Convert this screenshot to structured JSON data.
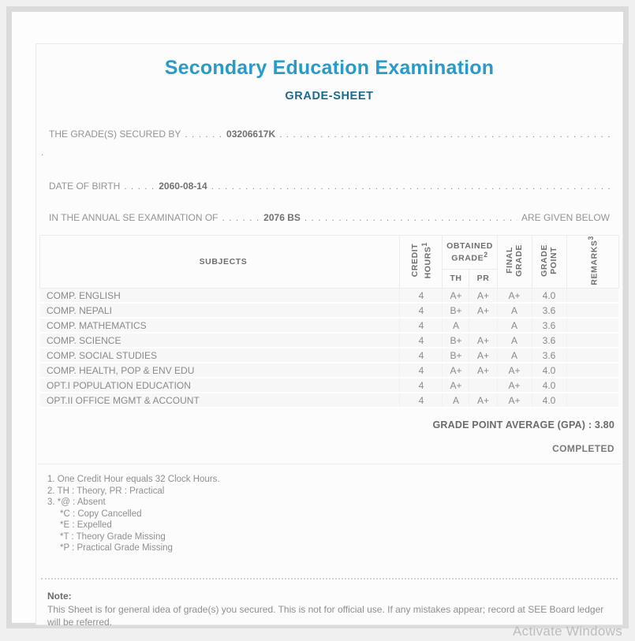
{
  "header": {
    "title": "Secondary Education Examination",
    "subtitle": "GRADE-SHEET"
  },
  "info": {
    "grades_label": "THE GRADE(S) SECURED BY",
    "grades_dots": ". . . . . .",
    "grades_value": "03206617K",
    "orphan_dot": ".",
    "dob_label": "DATE OF BIRTH",
    "dob_dots": ". . . . .",
    "dob_value": "2060-08-14",
    "exam_label": "IN THE ANNUAL SE EXAMINATION OF",
    "exam_dots": ". . . . . .",
    "exam_value": "2076 BS",
    "exam_suffix": "ARE GIVEN BELOW",
    "leader_fill": ". . . . . . . . . . . . . . . . . . . . . . . . . . . . . . . . . . . . . . . . . . . . . . . . . . . . . . . . . . . . . . . . . . . . . . . . . . . . . . . ."
  },
  "table": {
    "headers": {
      "subjects": "SUBJECTS",
      "credit_hours": "CREDIT\nHOURS",
      "credit_hours_sup": "1",
      "obtained_grade": "OBTAINED GRADE",
      "obtained_grade_sup": "2",
      "th": "TH",
      "pr": "PR",
      "final_grade": "FINAL\nGRADE",
      "grade_point": "GRADE\nPOINT",
      "remarks": "REMARKS",
      "remarks_sup": "3"
    },
    "rows": [
      {
        "subject": "COMP. ENGLISH",
        "credit": "4",
        "th": "A+",
        "pr": "A+",
        "final": "A+",
        "gp": "4.0",
        "remarks": ""
      },
      {
        "subject": "COMP. NEPALI",
        "credit": "4",
        "th": "B+",
        "pr": "A+",
        "final": "A",
        "gp": "3.6",
        "remarks": ""
      },
      {
        "subject": "COMP. MATHEMATICS",
        "credit": "4",
        "th": "A",
        "pr": "",
        "final": "A",
        "gp": "3.6",
        "remarks": ""
      },
      {
        "subject": "COMP. SCIENCE",
        "credit": "4",
        "th": "B+",
        "pr": "A+",
        "final": "A",
        "gp": "3.6",
        "remarks": ""
      },
      {
        "subject": "COMP. SOCIAL STUDIES",
        "credit": "4",
        "th": "B+",
        "pr": "A+",
        "final": "A",
        "gp": "3.6",
        "remarks": ""
      },
      {
        "subject": "COMP. HEALTH, POP & ENV EDU",
        "credit": "4",
        "th": "A+",
        "pr": "A+",
        "final": "A+",
        "gp": "4.0",
        "remarks": ""
      },
      {
        "subject": "OPT.I POPULATION EDUCATION",
        "credit": "4",
        "th": "A+",
        "pr": "",
        "final": "A+",
        "gp": "4.0",
        "remarks": ""
      },
      {
        "subject": "OPT.II OFFICE MGMT & ACCOUNT",
        "credit": "4",
        "th": "A",
        "pr": "A+",
        "final": "A+",
        "gp": "4.0",
        "remarks": ""
      }
    ]
  },
  "summary": {
    "gpa": "GRADE POINT AVERAGE (GPA) : 3.80",
    "status": "COMPLETED"
  },
  "footnotes": {
    "lines": [
      "1. One Credit Hour equals 32 Clock Hours.",
      "2. TH : Theory, PR : Practical",
      "3. *@ : Absent",
      "     *C : Copy Cancelled",
      "     *E : Expelled",
      "     *T : Theory Grade Missing",
      "     *P : Practical Grade Missing"
    ]
  },
  "note": {
    "label": "Note:",
    "text": "This Sheet is for general idea of grade(s) you secured. This is not for official use. If any mistakes appear; record at SEE Board ledger will be referred."
  },
  "watermark": {
    "text": "Activate Windows"
  },
  "colors": {
    "title": "#2a9ac6",
    "subtitle": "#1d6a8e",
    "body_text": "#949494",
    "row_background": "#f7f7f7",
    "frame_border": "#dbdbdb"
  }
}
